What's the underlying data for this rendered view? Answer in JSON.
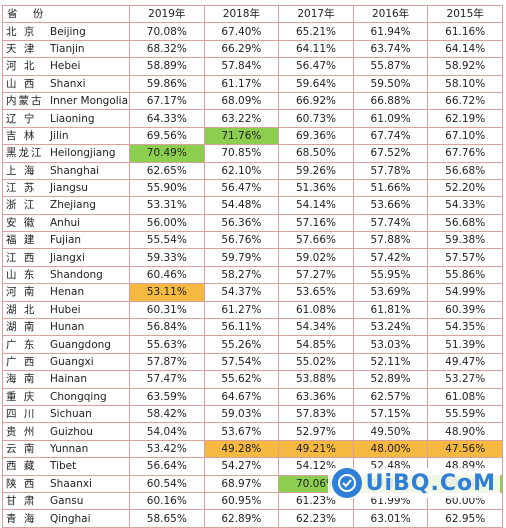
{
  "header": {
    "province": "省 份",
    "years": [
      "2019年",
      "2018年",
      "2017年",
      "2016年",
      "2015年"
    ]
  },
  "rows": [
    {
      "cn": "北 京",
      "en": "Beijing",
      "values": [
        "70.08%",
        "67.40%",
        "65.21%",
        "61.94%",
        "61.16%"
      ]
    },
    {
      "cn": "天 津",
      "en": "Tianjin",
      "values": [
        "68.32%",
        "66.29%",
        "64.11%",
        "63.74%",
        "64.14%"
      ]
    },
    {
      "cn": "河 北",
      "en": "Hebei",
      "values": [
        "58.89%",
        "57.84%",
        "56.47%",
        "55.87%",
        "58.92%"
      ]
    },
    {
      "cn": "山 西",
      "en": "Shanxi",
      "values": [
        "59.86%",
        "61.17%",
        "59.64%",
        "59.50%",
        "58.10%"
      ]
    },
    {
      "cn": "内蒙古",
      "en": "Inner Mongolia",
      "values": [
        "67.17%",
        "68.09%",
        "66.92%",
        "66.88%",
        "66.72%"
      ]
    },
    {
      "cn": "辽 宁",
      "en": "Liaoning",
      "values": [
        "64.33%",
        "63.22%",
        "60.73%",
        "61.09%",
        "62.19%"
      ]
    },
    {
      "cn": "吉 林",
      "en": "Jilin",
      "values": [
        "69.56%",
        "71.76%",
        "69.36%",
        "67.74%",
        "67.10%"
      ]
    },
    {
      "cn": "黑龙江",
      "en": "Heilongjiang",
      "values": [
        "70.49%",
        "70.85%",
        "68.50%",
        "67.52%",
        "67.76%"
      ]
    },
    {
      "cn": "上 海",
      "en": "Shanghai",
      "values": [
        "62.65%",
        "62.10%",
        "59.26%",
        "57.78%",
        "56.68%"
      ]
    },
    {
      "cn": "江 苏",
      "en": "Jiangsu",
      "values": [
        "55.90%",
        "56.47%",
        "51.36%",
        "51.66%",
        "52.20%"
      ]
    },
    {
      "cn": "浙 江",
      "en": "Zhejiang",
      "values": [
        "53.31%",
        "54.48%",
        "54.14%",
        "53.66%",
        "54.33%"
      ]
    },
    {
      "cn": "安 徽",
      "en": "Anhui",
      "values": [
        "56.00%",
        "56.36%",
        "57.16%",
        "57.74%",
        "56.68%"
      ]
    },
    {
      "cn": "福 建",
      "en": "Fujian",
      "values": [
        "55.54%",
        "56.76%",
        "57.66%",
        "57.88%",
        "59.38%"
      ]
    },
    {
      "cn": "江 西",
      "en": "Jiangxi",
      "values": [
        "59.33%",
        "59.79%",
        "59.02%",
        "57.42%",
        "57.57%"
      ]
    },
    {
      "cn": "山 东",
      "en": "Shandong",
      "values": [
        "60.46%",
        "58.27%",
        "57.27%",
        "55.95%",
        "55.86%"
      ]
    },
    {
      "cn": "河 南",
      "en": "Henan",
      "values": [
        "53.11%",
        "54.37%",
        "53.65%",
        "53.69%",
        "54.99%"
      ]
    },
    {
      "cn": "湖 北",
      "en": "Hubei",
      "values": [
        "60.31%",
        "61.27%",
        "61.08%",
        "61.81%",
        "60.39%"
      ]
    },
    {
      "cn": "湖 南",
      "en": "Hunan",
      "values": [
        "56.84%",
        "56.11%",
        "54.34%",
        "53.24%",
        "54.35%"
      ]
    },
    {
      "cn": "广 东",
      "en": "Guangdong",
      "values": [
        "55.63%",
        "55.26%",
        "54.85%",
        "53.03%",
        "51.39%"
      ]
    },
    {
      "cn": "广 西",
      "en": "Guangxi",
      "values": [
        "57.87%",
        "57.54%",
        "55.02%",
        "52.11%",
        "49.47%"
      ]
    },
    {
      "cn": "海 南",
      "en": "Hainan",
      "values": [
        "57.47%",
        "55.62%",
        "53.88%",
        "52.89%",
        "53.27%"
      ]
    },
    {
      "cn": "重 庆",
      "en": "Chongqing",
      "values": [
        "63.59%",
        "64.67%",
        "63.36%",
        "62.57%",
        "61.08%"
      ]
    },
    {
      "cn": "四 川",
      "en": "Sichuan",
      "values": [
        "58.42%",
        "59.03%",
        "57.83%",
        "57.15%",
        "55.59%"
      ]
    },
    {
      "cn": "贵 州",
      "en": "Guizhou",
      "values": [
        "54.04%",
        "53.67%",
        "52.97%",
        "49.50%",
        "48.90%"
      ]
    },
    {
      "cn": "云 南",
      "en": "Yunnan",
      "values": [
        "53.42%",
        "49.28%",
        "49.21%",
        "48.00%",
        "47.56%"
      ]
    },
    {
      "cn": "西 藏",
      "en": "Tibet",
      "values": [
        "56.64%",
        "54.27%",
        "54.12%",
        "52.48%",
        "48.89%"
      ]
    },
    {
      "cn": "陕 西",
      "en": "Shaanxi",
      "values": [
        "60.54%",
        "68.97%",
        "70.06%",
        "70.35%",
        "69.64%"
      ]
    },
    {
      "cn": "甘 肃",
      "en": "Gansu",
      "values": [
        "60.16%",
        "60.95%",
        "61.23%",
        "61.99%",
        "60.00%"
      ]
    },
    {
      "cn": "青 海",
      "en": "Qinghai",
      "values": [
        "58.65%",
        "62.89%",
        "62.23%",
        "63.01%",
        "62.95%"
      ]
    }
  ],
  "highlights": {
    "green": [
      [
        6,
        1
      ],
      [
        7,
        0
      ],
      [
        26,
        2
      ],
      [
        26,
        3
      ],
      [
        26,
        4
      ]
    ],
    "orange": [
      [
        15,
        0
      ],
      [
        24,
        1
      ],
      [
        24,
        2
      ],
      [
        24,
        3
      ],
      [
        24,
        4
      ]
    ],
    "green_color": "#8ccf4f",
    "orange_color": "#f5b942"
  },
  "watermark": {
    "text": "UiBQ.CoM",
    "icon": "logo-badge-icon"
  }
}
